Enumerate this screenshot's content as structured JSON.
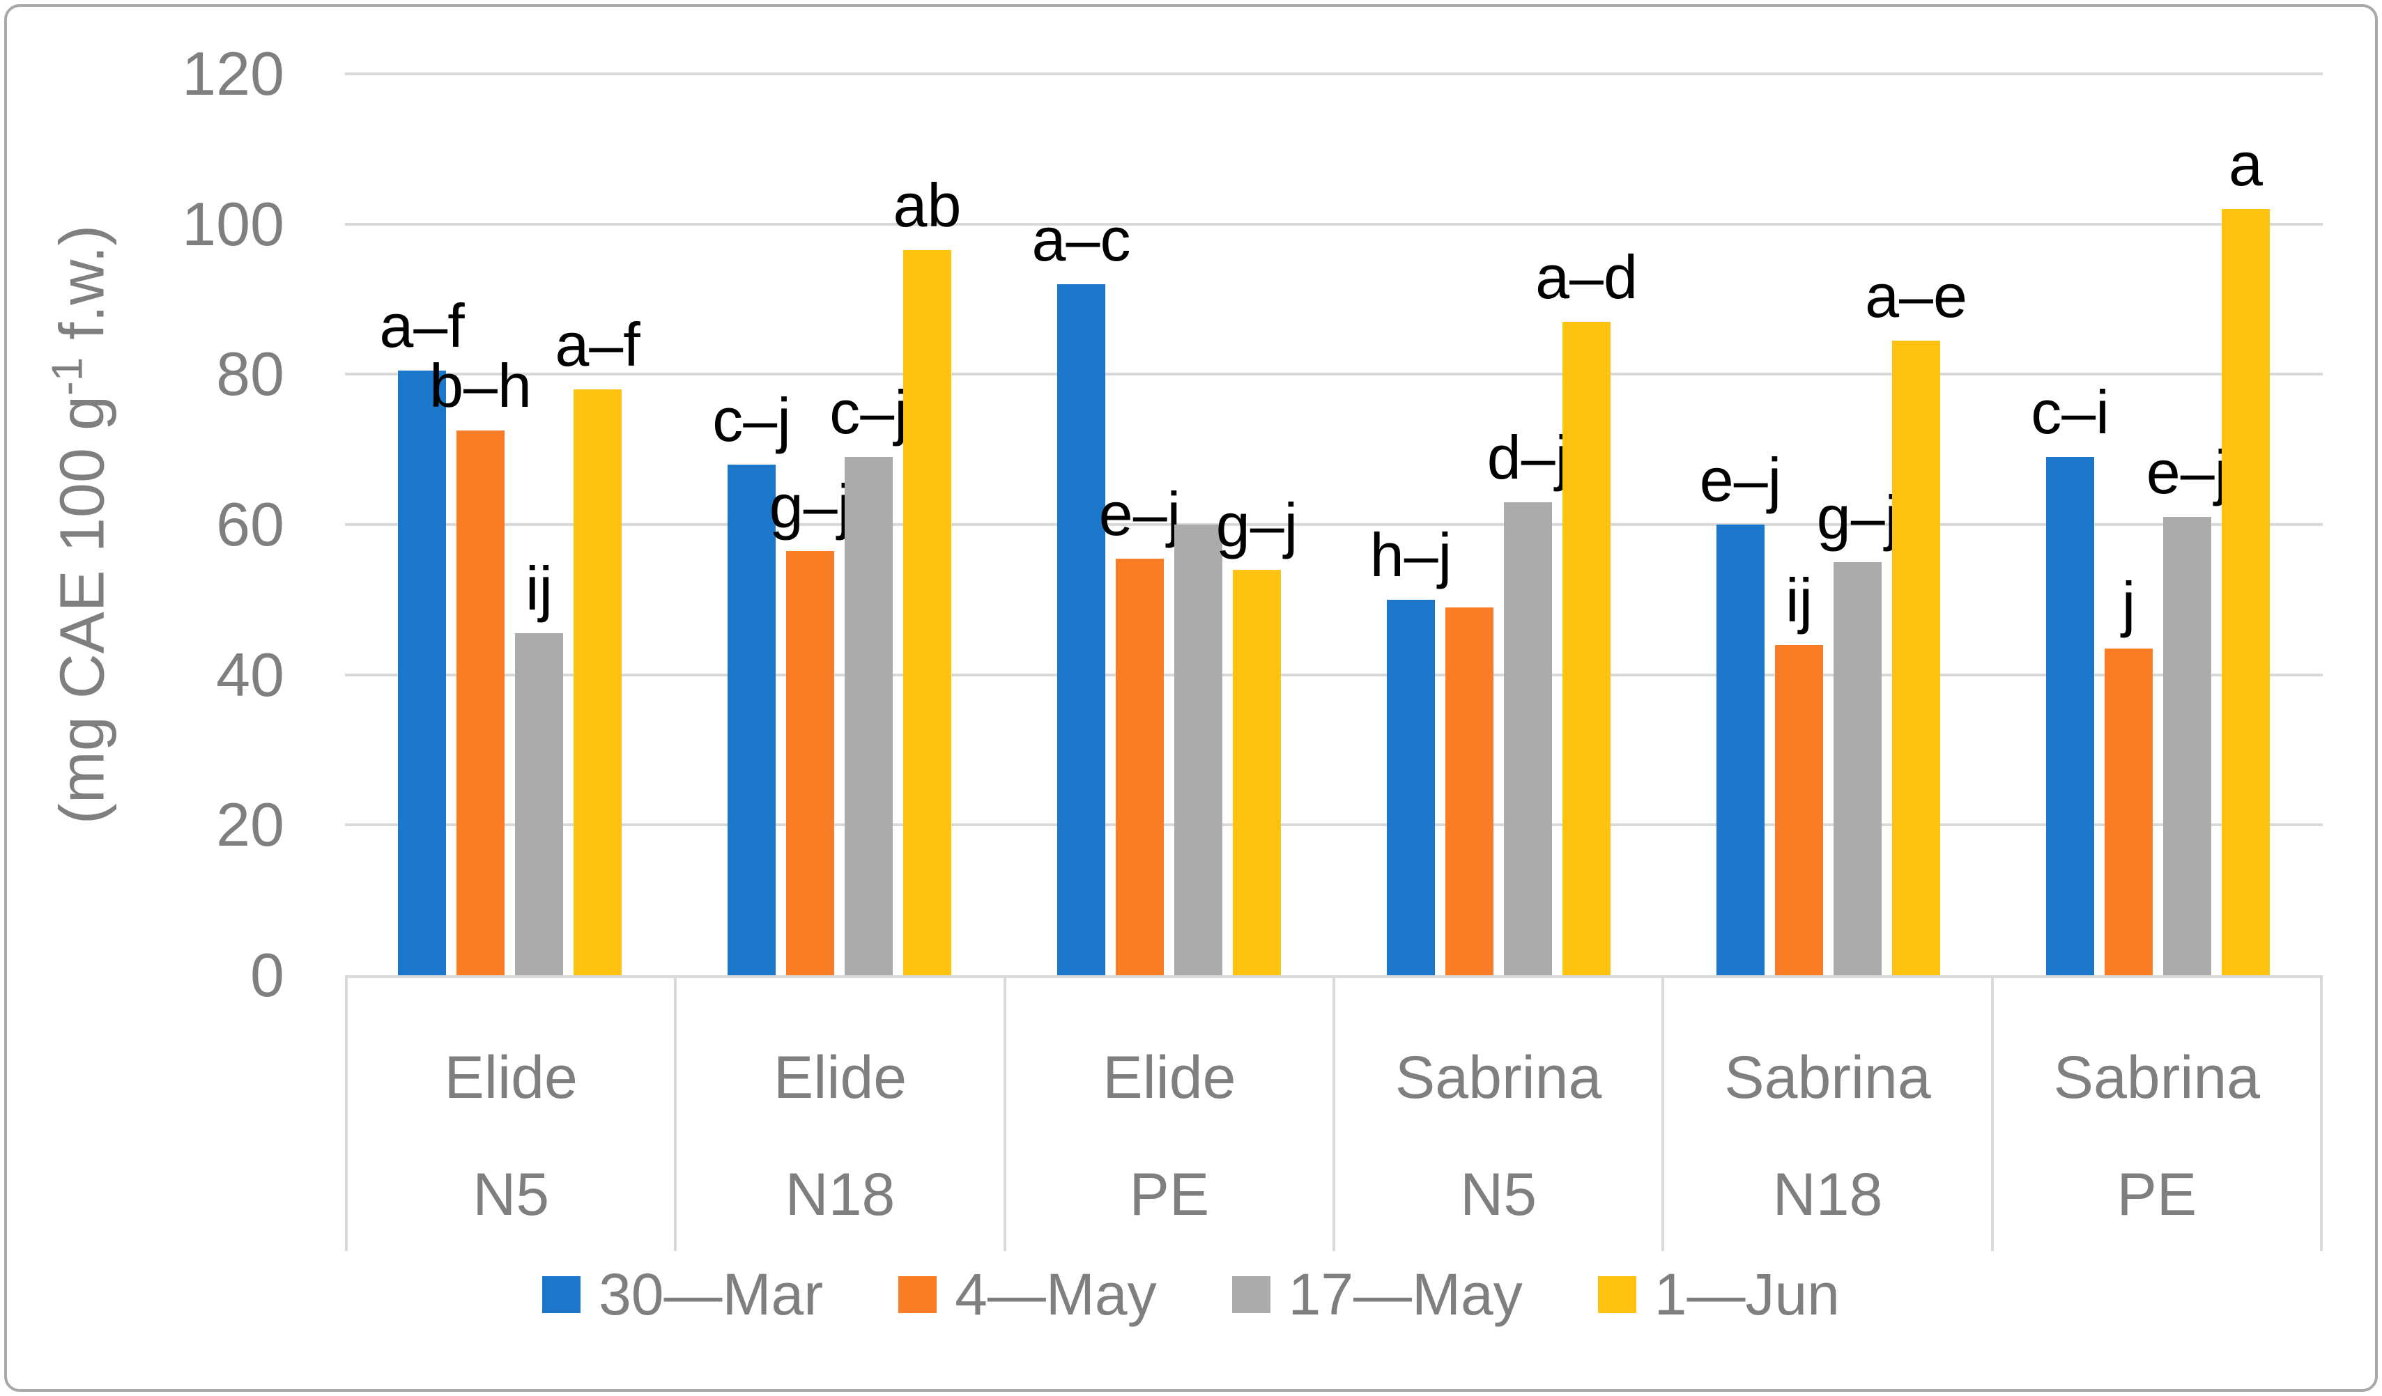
{
  "figure": {
    "background": "#ffffff",
    "border_color": "#a8a8a8",
    "gridline_color": "#d9d9d9",
    "axis_text_color": "#7f7f7f",
    "data_label_color": "#000000"
  },
  "chart_data": {
    "type": "bar",
    "title": "",
    "ylabel": "(mg CAE 100 g⁻¹ f.w.)",
    "ylabel_parts": {
      "pre": "(mg CAE 100 g",
      "sup": "-1",
      "post": " f.w.)"
    },
    "ylim": [
      0,
      120
    ],
    "yticks": [
      "0",
      "20",
      "40",
      "60",
      "80",
      "100",
      "120"
    ],
    "grid": true,
    "legend_position": "bottom",
    "categories": [
      {
        "variety": "Elide",
        "treatment": "N5"
      },
      {
        "variety": "Elide",
        "treatment": "N18"
      },
      {
        "variety": "Elide",
        "treatment": "PE"
      },
      {
        "variety": "Sabrina",
        "treatment": "N5"
      },
      {
        "variety": "Sabrina",
        "treatment": "N18"
      },
      {
        "variety": "Sabrina",
        "treatment": "PE"
      }
    ],
    "series": [
      {
        "name": "30—Mar",
        "color": "#1c76c9",
        "values": [
          80.5,
          68,
          92,
          50,
          60,
          69
        ],
        "sig_labels": [
          "a–f",
          "c–j",
          "a–c",
          "h–j",
          "e–j",
          "c–i"
        ]
      },
      {
        "name": "4—May",
        "color": "#fa7d25",
        "values": [
          72.5,
          56.5,
          55.5,
          49,
          44,
          43.5
        ],
        "sig_labels": [
          "b–h",
          "g–j",
          "e–j",
          "",
          "ij",
          "j"
        ]
      },
      {
        "name": "17—May",
        "color": "#ababab",
        "values": [
          45.5,
          69,
          60,
          63,
          55,
          61
        ],
        "sig_labels": [
          "ij",
          "c–j",
          "",
          "d–j",
          "g–j",
          "e–j"
        ]
      },
      {
        "name": "1—Jun",
        "color": "#fec211",
        "values": [
          78,
          96.5,
          54,
          87,
          84.5,
          102
        ],
        "sig_labels": [
          "a–f",
          "ab",
          "g–j",
          "a–d",
          "a–e",
          "a"
        ]
      }
    ]
  }
}
